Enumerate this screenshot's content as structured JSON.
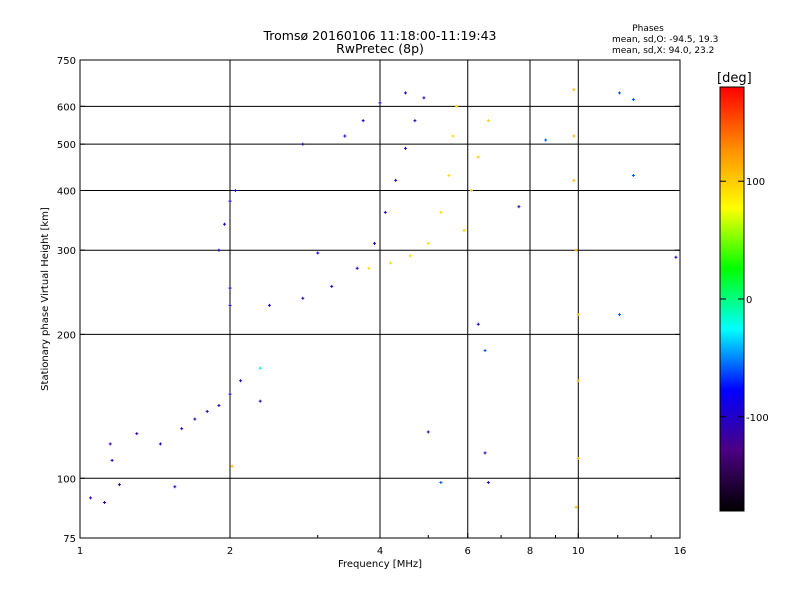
{
  "chart_data": {
    "type": "scatter",
    "title": "Tromsø 20160106 11:18:00-11:19:43",
    "subtitle": "RwPretec (8p)",
    "xlabel": "Frequency [MHz]",
    "ylabel": "Stationary phase Virtual Height [km]",
    "x_scale": "log",
    "y_scale": "log",
    "xlim": [
      1,
      16
    ],
    "ylim": [
      75,
      750
    ],
    "x_ticks": [
      {
        "value": 1,
        "label": "1"
      },
      {
        "value": 2,
        "label": "2"
      },
      {
        "value": 4,
        "label": "4"
      },
      {
        "value": 6,
        "label": "6"
      },
      {
        "value": 8,
        "label": "8"
      },
      {
        "value": 10,
        "label": "10"
      },
      {
        "value": 16,
        "label": "16"
      }
    ],
    "y_ticks": [
      {
        "value": 75,
        "label": "75"
      },
      {
        "value": 100,
        "label": "100"
      },
      {
        "value": 200,
        "label": "200"
      },
      {
        "value": 300,
        "label": "300"
      },
      {
        "value": 400,
        "label": "400"
      },
      {
        "value": 500,
        "label": "500"
      },
      {
        "value": 600,
        "label": "600"
      },
      {
        "value": 750,
        "label": "750"
      }
    ],
    "grid_x": [
      2,
      4,
      6,
      8,
      10
    ],
    "grid_y": [
      100,
      200,
      300,
      400,
      500,
      600
    ],
    "grid": true,
    "stats": {
      "heading": "Phases",
      "line_o": "mean, sd,O: -94.5, 19.3",
      "line_x": "mean, sd,X:  94.0, 23.2"
    },
    "colorbar": {
      "label": "[deg]",
      "range": [
        -180,
        180
      ],
      "ticks": [
        {
          "value": 100,
          "label": "100"
        },
        {
          "value": 0,
          "label": "0"
        },
        {
          "value": -100,
          "label": "-100"
        }
      ],
      "stops": [
        "#000000",
        "#4b0082",
        "#0000ff",
        "#00ffff",
        "#00ff00",
        "#ffff00",
        "#ff8c00",
        "#ff0000"
      ]
    },
    "series": [
      {
        "points": [
          [
            1.05,
            91
          ],
          [
            1.12,
            89
          ],
          [
            1.2,
            97
          ],
          [
            1.15,
            118
          ],
          [
            1.3,
            124
          ]
        ],
        "phase": -110
      },
      {
        "points": [
          [
            1.45,
            118
          ],
          [
            1.6,
            127
          ],
          [
            1.7,
            133
          ],
          [
            1.8,
            138
          ],
          [
            1.9,
            142
          ],
          [
            2.0,
            150
          ],
          [
            2.1,
            160
          ],
          [
            2.3,
            145
          ]
        ],
        "phase": -105
      },
      {
        "points": [
          [
            2.0,
            230
          ],
          [
            2.4,
            230
          ],
          [
            2.8,
            238
          ],
          [
            3.2,
            252
          ],
          [
            3.6,
            275
          ],
          [
            3.9,
            310
          ],
          [
            4.1,
            360
          ],
          [
            4.3,
            420
          ],
          [
            4.5,
            490
          ],
          [
            4.7,
            560
          ],
          [
            4.9,
            625
          ]
        ],
        "phase": -100
      },
      {
        "points": [
          [
            1.9,
            300
          ],
          [
            1.95,
            340
          ],
          [
            2.0,
            380
          ],
          [
            2.05,
            400
          ],
          [
            2.0,
            250
          ]
        ],
        "phase": -95
      },
      {
        "points": [
          [
            3.4,
            520
          ],
          [
            3.7,
            560
          ],
          [
            4.0,
            610
          ],
          [
            4.5,
            640
          ]
        ],
        "phase": -90
      },
      {
        "points": [
          [
            3.8,
            275
          ],
          [
            4.2,
            282
          ],
          [
            4.6,
            292
          ],
          [
            5.0,
            310
          ],
          [
            5.3,
            360
          ],
          [
            5.5,
            430
          ],
          [
            5.6,
            520
          ],
          [
            5.7,
            600
          ]
        ],
        "phase": 95
      },
      {
        "points": [
          [
            5.9,
            330
          ],
          [
            6.1,
            400
          ],
          [
            6.3,
            470
          ],
          [
            6.6,
            560
          ]
        ],
        "phase": 100
      },
      {
        "points": [
          [
            9.8,
            650
          ],
          [
            9.8,
            520
          ],
          [
            9.8,
            420
          ],
          [
            9.9,
            300
          ],
          [
            10,
            220
          ],
          [
            10,
            160
          ],
          [
            10,
            110
          ],
          [
            9.9,
            87
          ]
        ],
        "phase": 110
      }
    ],
    "isolated_points": [
      {
        "x": 1.16,
        "y": 109,
        "phase": -100
      },
      {
        "x": 1.55,
        "y": 96,
        "phase": -100
      },
      {
        "x": 2.02,
        "y": 106,
        "phase": 110
      },
      {
        "x": 2.3,
        "y": 170,
        "phase": -30
      },
      {
        "x": 2.8,
        "y": 500,
        "phase": -100
      },
      {
        "x": 3.0,
        "y": 296,
        "phase": -90
      },
      {
        "x": 5.0,
        "y": 125,
        "phase": -110
      },
      {
        "x": 5.3,
        "y": 98,
        "phase": -60
      },
      {
        "x": 6.3,
        "y": 210,
        "phase": -100
      },
      {
        "x": 6.5,
        "y": 185,
        "phase": -60
      },
      {
        "x": 6.6,
        "y": 98,
        "phase": -110
      },
      {
        "x": 6.5,
        "y": 113,
        "phase": -110
      },
      {
        "x": 7.6,
        "y": 370,
        "phase": -100
      },
      {
        "x": 8.6,
        "y": 510,
        "phase": -60
      },
      {
        "x": 12.1,
        "y": 640,
        "phase": -60
      },
      {
        "x": 12.9,
        "y": 620,
        "phase": -60
      },
      {
        "x": 12.9,
        "y": 430,
        "phase": -60
      },
      {
        "x": 12.1,
        "y": 220,
        "phase": -60
      },
      {
        "x": 15.7,
        "y": 290,
        "phase": -100
      }
    ]
  }
}
